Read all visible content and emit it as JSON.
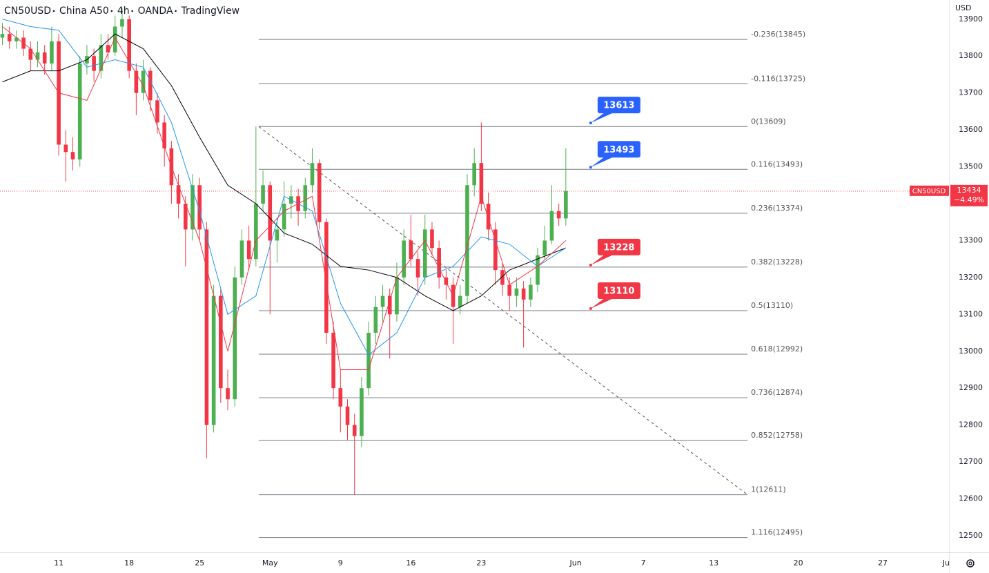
{
  "chart_data": {
    "type": "candlestick",
    "header": [
      "CN50USD",
      "China A50",
      "4h",
      "OANDA",
      "TradingView"
    ],
    "currency": "USD",
    "symbol": "CN50USD",
    "last_price": 13434,
    "change_label": "−4.49%",
    "up_color": "#4caf50",
    "down_color": "#f23645",
    "xlim": [
      -4.17,
      63.2
    ],
    "xticks": [
      {
        "value": 0,
        "label": "11"
      },
      {
        "value": 5,
        "label": "18"
      },
      {
        "value": 10,
        "label": "25"
      },
      {
        "value": 15,
        "label": "May"
      },
      {
        "value": 20,
        "label": "9"
      },
      {
        "value": 25,
        "label": "16"
      },
      {
        "value": 30,
        "label": "23"
      },
      {
        "value": 36.7,
        "label": "Jun"
      },
      {
        "value": 41.5,
        "label": "7"
      },
      {
        "value": 46.5,
        "label": "13"
      },
      {
        "value": 52.5,
        "label": "20"
      },
      {
        "value": 58.5,
        "label": "27"
      },
      {
        "value": 63,
        "label": "Ju"
      }
    ],
    "ylim": [
      12455,
      13952
    ],
    "yticks": [
      12500,
      12600,
      12700,
      12800,
      12900,
      13000,
      13100,
      13200,
      13300,
      13400,
      13500,
      13600,
      13700,
      13800,
      13900
    ],
    "x": [
      -4,
      -3.5,
      -3,
      -2.5,
      -2,
      -1.5,
      -1,
      -0.5,
      0,
      0.5,
      1,
      1.5,
      2,
      2.5,
      3,
      3.5,
      4,
      4.5,
      5,
      5.5,
      6,
      6.5,
      7,
      7.5,
      8,
      8.5,
      9,
      9.5,
      10,
      10.5,
      11,
      11.5,
      12,
      12.5,
      13,
      13.5,
      14,
      14.5,
      15,
      15.5,
      16,
      16.5,
      17,
      17.5,
      18,
      18.5,
      19,
      19.5,
      20,
      20.5,
      21,
      21.5,
      22,
      22.5,
      23,
      23.5,
      24,
      24.5,
      25,
      25.5,
      26,
      26.5,
      27,
      27.5,
      28,
      28.5,
      29,
      29.5,
      30,
      30.5,
      31,
      31.5,
      32,
      32.5,
      33,
      33.5,
      34,
      34.5,
      35,
      35.5,
      36
    ],
    "candles": [
      [
        13850,
        13890,
        13830,
        13860
      ],
      [
        13860,
        13880,
        13820,
        13840
      ],
      [
        13840,
        13870,
        13820,
        13850
      ],
      [
        13850,
        13870,
        13800,
        13820
      ],
      [
        13820,
        13840,
        13760,
        13790
      ],
      [
        13790,
        13840,
        13770,
        13810
      ],
      [
        13810,
        13830,
        13750,
        13780
      ],
      [
        13780,
        13880,
        13760,
        13840
      ],
      [
        13840,
        13860,
        13530,
        13560
      ],
      [
        13560,
        13600,
        13460,
        13540
      ],
      [
        13540,
        13580,
        13490,
        13520
      ],
      [
        13520,
        13800,
        13500,
        13780
      ],
      [
        13780,
        13830,
        13750,
        13800
      ],
      [
        13800,
        13820,
        13730,
        13760
      ],
      [
        13760,
        13860,
        13740,
        13830
      ],
      [
        13830,
        13860,
        13790,
        13810
      ],
      [
        13810,
        13910,
        13800,
        13880
      ],
      [
        13880,
        13930,
        13850,
        13900
      ],
      [
        13900,
        13910,
        13740,
        13760
      ],
      [
        13760,
        13780,
        13640,
        13700
      ],
      [
        13700,
        13790,
        13680,
        13760
      ],
      [
        13760,
        13770,
        13650,
        13680
      ],
      [
        13680,
        13700,
        13590,
        13620
      ],
      [
        13620,
        13640,
        13500,
        13550
      ],
      [
        13550,
        13570,
        13400,
        13450
      ],
      [
        13450,
        13480,
        13360,
        13400
      ],
      [
        13400,
        13420,
        13230,
        13330
      ],
      [
        13330,
        13480,
        13300,
        13450
      ],
      [
        13450,
        13470,
        13300,
        13330
      ],
      [
        13330,
        13350,
        12710,
        12800
      ],
      [
        12800,
        13180,
        12780,
        13150
      ],
      [
        13150,
        13170,
        12860,
        12900
      ],
      [
        12900,
        12950,
        12840,
        12870
      ],
      [
        12870,
        13230,
        12850,
        13200
      ],
      [
        13200,
        13330,
        13180,
        13300
      ],
      [
        13300,
        13340,
        13220,
        13250
      ],
      [
        13250,
        13609,
        13230,
        13400
      ],
      [
        13400,
        13490,
        13380,
        13450
      ],
      [
        13450,
        13460,
        13100,
        13300
      ],
      [
        13300,
        13360,
        13240,
        13330
      ],
      [
        13330,
        13460,
        13310,
        13400
      ],
      [
        13400,
        13450,
        13360,
        13420
      ],
      [
        13420,
        13440,
        13340,
        13380
      ],
      [
        13380,
        13470,
        13360,
        13450
      ],
      [
        13450,
        13550,
        13430,
        13510
      ],
      [
        13510,
        13520,
        13330,
        13350
      ],
      [
        13350,
        13360,
        13020,
        13050
      ],
      [
        13050,
        13080,
        12870,
        12900
      ],
      [
        12900,
        12950,
        12780,
        12850
      ],
      [
        12850,
        12870,
        12760,
        12800
      ],
      [
        12800,
        12830,
        12611,
        12770
      ],
      [
        12770,
        12930,
        12740,
        12900
      ],
      [
        12900,
        13080,
        12880,
        13050
      ],
      [
        13050,
        13150,
        13020,
        13120
      ],
      [
        13120,
        13180,
        13080,
        13150
      ],
      [
        13150,
        13170,
        12980,
        13100
      ],
      [
        13100,
        13240,
        13080,
        13200
      ],
      [
        13200,
        13330,
        13180,
        13300
      ],
      [
        13300,
        13370,
        13230,
        13250
      ],
      [
        13250,
        13270,
        13150,
        13200
      ],
      [
        13200,
        13370,
        13180,
        13330
      ],
      [
        13330,
        13350,
        13260,
        13280
      ],
      [
        13280,
        13300,
        13170,
        13200
      ],
      [
        13200,
        13220,
        13140,
        13180
      ],
      [
        13180,
        13200,
        13020,
        13120
      ],
      [
        13120,
        13180,
        13100,
        13150
      ],
      [
        13150,
        13480,
        13130,
        13450
      ],
      [
        13450,
        13550,
        13420,
        13510
      ],
      [
        13510,
        13620,
        13380,
        13400
      ],
      [
        13400,
        13430,
        13300,
        13330
      ],
      [
        13330,
        13350,
        13180,
        13220
      ],
      [
        13220,
        13240,
        13150,
        13180
      ],
      [
        13180,
        13200,
        13110,
        13150
      ],
      [
        13150,
        13200,
        13120,
        13170
      ],
      [
        13170,
        13190,
        13010,
        13140
      ],
      [
        13140,
        13200,
        13120,
        13180
      ],
      [
        13180,
        13280,
        13160,
        13260
      ],
      [
        13260,
        13340,
        13250,
        13300
      ],
      [
        13300,
        13450,
        13290,
        13380
      ],
      [
        13380,
        13400,
        13340,
        13360
      ],
      [
        13360,
        13550,
        13340,
        13434
      ]
    ],
    "ma_x": [
      -4,
      -2,
      0,
      2,
      4,
      6,
      8,
      10,
      12,
      14,
      16,
      18,
      20,
      22,
      24,
      26,
      28,
      30,
      32,
      34,
      36
    ],
    "moving_averages": [
      {
        "color": "#000000",
        "values": [
          13730,
          13760,
          13760,
          13790,
          13860,
          13820,
          13720,
          13580,
          13450,
          13400,
          13320,
          13290,
          13230,
          13220,
          13200,
          13150,
          13110,
          13150,
          13220,
          13250,
          13280
        ]
      },
      {
        "color": "#2196f3",
        "values": [
          13900,
          13880,
          13870,
          13770,
          13790,
          13770,
          13620,
          13380,
          13100,
          13150,
          13420,
          13380,
          13130,
          12990,
          13050,
          13200,
          13230,
          13310,
          13290,
          13230,
          13280
        ]
      },
      {
        "color": "#f23645",
        "values": [
          13880,
          13820,
          13700,
          13680,
          13850,
          13720,
          13500,
          13300,
          13000,
          13300,
          13380,
          13420,
          12950,
          12950,
          13200,
          13300,
          13150,
          13420,
          13180,
          13230,
          13300
        ]
      }
    ],
    "fib_x": [
      14.2,
      48.9
    ],
    "fib_levels": [
      {
        "value": 13845,
        "label": "-0.236(13845)"
      },
      {
        "value": 13725,
        "label": "-0.116(13725)"
      },
      {
        "value": 13609,
        "label": "0(13609)"
      },
      {
        "value": 13493,
        "label": "0.116(13493)"
      },
      {
        "value": 13374,
        "label": "0.236(13374)"
      },
      {
        "value": 13228,
        "label": "0.382(13228)"
      },
      {
        "value": 13110,
        "label": "0.5(13110)"
      },
      {
        "value": 12992,
        "label": "0.618(12992)"
      },
      {
        "value": 12874,
        "label": "0.736(12874)"
      },
      {
        "value": 12758,
        "label": "0.852(12758)"
      },
      {
        "value": 12611,
        "label": "1(12611)"
      },
      {
        "value": 12495,
        "label": "1.116(12495)"
      }
    ],
    "trend_line": {
      "x": [
        14.2,
        48.9
      ],
      "values": [
        13609,
        12611
      ]
    },
    "callout_x": 38.5,
    "callouts": [
      {
        "value": 13613,
        "color": "#2962ff"
      },
      {
        "value": 13493,
        "color": "#2962ff"
      },
      {
        "value": 13228,
        "color": "#f23645"
      },
      {
        "value": 13110,
        "color": "#f23645"
      }
    ]
  }
}
